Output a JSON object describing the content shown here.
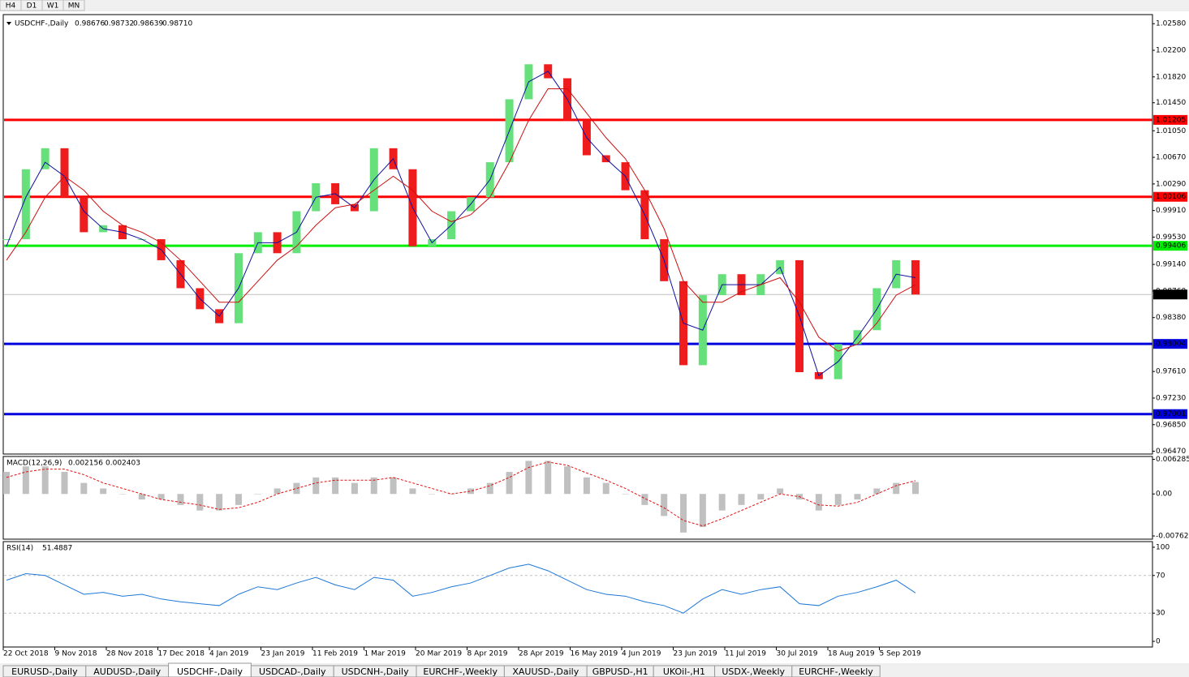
{
  "toolbar": {
    "timeframes": [
      "H4",
      "D1",
      "W1",
      "MN"
    ]
  },
  "chart_data": {
    "type": "candlestick",
    "title": "USDCHF-,Daily",
    "ohlc": [
      0.98676,
      0.98732,
      0.98639,
      {
        "value": 0.9871,
        "label": "0.98710"
      }
    ],
    "x_labels": [
      "22 Oct 2018",
      "9 Nov 2018",
      "28 Nov 2018",
      "17 Dec 2018",
      "4 Jan 2019",
      "23 Jan 2019",
      "11 Feb 2019",
      "1 Mar 2019",
      "20 Mar 2019",
      "8 Apr 2019",
      "28 Apr 2019",
      "16 May 2019",
      "4 Jun 2019",
      "23 Jun 2019",
      "11 Jul 2019",
      "30 Jul 2019",
      "18 Aug 2019",
      "5 Sep 2019"
    ],
    "ylim": [
      0.9643,
      1.0271
    ],
    "yticks": [
      {
        "value": 1.0258,
        "label": "1.02580"
      },
      {
        "value": 1.022,
        "label": "1.02200"
      },
      {
        "value": 1.0182,
        "label": "1.01820"
      },
      {
        "value": 1.0145,
        "label": "1.01450"
      },
      {
        "value": 1.0105,
        "label": "1.01050"
      },
      {
        "value": 1.0067,
        "label": "1.00670"
      },
      {
        "value": 1.0029,
        "label": "1.00290"
      },
      {
        "value": 0.9991,
        "label": "0.99910"
      },
      {
        "value": 0.9953,
        "label": "0.99530"
      },
      {
        "value": 0.9914,
        "label": "0.99140"
      },
      {
        "value": 0.9876,
        "label": "0.98760"
      },
      {
        "value": 0.9838,
        "label": "0.98380"
      },
      {
        "value": 0.9761,
        "label": "0.97610"
      },
      {
        "value": 0.9723,
        "label": "0.97230"
      },
      {
        "value": 0.9685,
        "label": "0.96850"
      },
      {
        "value": 0.9647,
        "label": "0.96470"
      }
    ],
    "close": [
      0.995,
      1.005,
      1.008,
      1.001,
      0.996,
      0.997,
      0.995,
      0.995,
      0.992,
      0.988,
      0.985,
      0.983,
      0.993,
      0.996,
      0.993,
      0.999,
      1.003,
      1.0,
      0.999,
      1.008,
      1.005,
      0.994,
      0.995,
      0.999,
      1.001,
      1.006,
      1.015,
      1.02,
      1.018,
      1.012,
      1.007,
      1.006,
      1.002,
      0.995,
      0.989,
      0.977,
      0.987,
      0.99,
      0.987,
      0.99,
      0.992,
      0.976,
      0.975,
      0.98,
      0.982,
      0.988,
      0.992,
      0.9871
    ],
    "up_color": "#66e07a",
    "down_color": "#ee1c1c",
    "series": [
      {
        "color": "#1010a0",
        "values": [
          0.994,
          1.001,
          1.006,
          1.004,
          0.999,
          0.9965,
          0.996,
          0.995,
          0.9935,
          0.99,
          0.9865,
          0.984,
          0.988,
          0.9945,
          0.9945,
          0.996,
          1.001,
          1.0015,
          0.9995,
          1.0035,
          1.0065,
          0.9995,
          0.9945,
          0.997,
          1.0,
          1.0035,
          1.0105,
          1.0175,
          1.019,
          1.015,
          1.0095,
          1.0065,
          1.004,
          0.9985,
          0.992,
          0.983,
          0.982,
          0.9885,
          0.9885,
          0.9885,
          0.991,
          0.984,
          0.9755,
          0.9775,
          0.981,
          0.985,
          0.99,
          0.9895
        ]
      },
      {
        "color": "#cc1010",
        "values": [
          0.992,
          0.996,
          1.001,
          1.004,
          1.002,
          0.999,
          0.997,
          0.996,
          0.9945,
          0.992,
          0.989,
          0.986,
          0.986,
          0.989,
          0.992,
          0.994,
          0.997,
          0.9995,
          1.0,
          1.002,
          1.004,
          1.002,
          0.999,
          0.9975,
          0.9985,
          1.001,
          1.006,
          1.012,
          1.0165,
          1.0165,
          1.013,
          1.0095,
          1.0065,
          1.002,
          0.9965,
          0.989,
          0.986,
          0.986,
          0.9875,
          0.9885,
          0.9895,
          0.986,
          0.981,
          0.979,
          0.98,
          0.983,
          0.987,
          0.9885
        ]
      }
    ],
    "levels": [
      {
        "value": 1.01205,
        "label": "1.01205",
        "color": "#ff0000"
      },
      {
        "value": 1.00106,
        "label": "1.00106",
        "color": "#ff0000"
      },
      {
        "value": 0.99406,
        "label": "0.99406",
        "color": "#00ee00"
      },
      {
        "value": 0.98004,
        "label": "0.98004",
        "color": "#0000dd"
      },
      {
        "value": 0.97001,
        "label": "0.97001",
        "color": "#0000dd"
      }
    ],
    "macd": {
      "title": "MACD(12,26,9)",
      "readout": [
        0.002156,
        0.002403
      ],
      "ylim": [
        -0.0082,
        0.0068
      ],
      "yticks": [
        0.006285,
        {
          "value": 0,
          "label": "0.00"
        },
        -0.00762
      ],
      "histogram": [
        0.004,
        0.005,
        0.005,
        0.004,
        0.002,
        0.001,
        0.0,
        -0.001,
        -0.001,
        -0.002,
        -0.003,
        -0.003,
        -0.002,
        0.0,
        0.001,
        0.002,
        0.003,
        0.003,
        0.002,
        0.003,
        0.003,
        0.001,
        0.0,
        0.0,
        0.001,
        0.002,
        0.004,
        0.006,
        0.006,
        0.005,
        0.003,
        0.002,
        0.0,
        -0.002,
        -0.004,
        -0.007,
        -0.006,
        -0.003,
        -0.002,
        -0.001,
        0.001,
        -0.001,
        -0.003,
        -0.002,
        -0.001,
        0.001,
        0.002,
        0.002156
      ],
      "signal": [
        0.003,
        0.004,
        0.0045,
        0.0045,
        0.0035,
        0.002,
        0.001,
        0.0,
        -0.001,
        -0.0015,
        -0.002,
        -0.0028,
        -0.0025,
        -0.0015,
        0.0,
        0.001,
        0.002,
        0.0025,
        0.0025,
        0.0025,
        0.003,
        0.002,
        0.001,
        0.0,
        0.0005,
        0.0015,
        0.003,
        0.0048,
        0.0058,
        0.0052,
        0.0038,
        0.0025,
        0.001,
        -0.0008,
        -0.0025,
        -0.0048,
        -0.0058,
        -0.0045,
        -0.003,
        -0.0015,
        0.0,
        -0.0005,
        -0.002,
        -0.0022,
        -0.0015,
        0.0,
        0.0015,
        0.002403
      ]
    },
    "rsi": {
      "title": "RSI(14)",
      "readout": 51.4887,
      "ylim": [
        -6,
        106
      ],
      "yticks": [
        100,
        70,
        30,
        0
      ],
      "values": [
        65,
        72,
        70,
        60,
        50,
        52,
        48,
        50,
        45,
        42,
        40,
        38,
        50,
        58,
        55,
        62,
        68,
        60,
        55,
        68,
        65,
        48,
        52,
        58,
        62,
        70,
        78,
        82,
        75,
        65,
        55,
        50,
        48,
        42,
        38,
        30,
        45,
        55,
        50,
        55,
        58,
        40,
        38,
        48,
        52,
        58,
        65,
        51.4887
      ]
    }
  },
  "tabs": [
    "EURUSD-,Daily",
    "AUDUSD-,Daily",
    "USDCHF-,Daily",
    "USDCAD-,Daily",
    "USDCNH-,Daily",
    "EURCHF-,Weekly",
    "XAUUSD-,Daily",
    "GBPUSD-,H1",
    "UKOil-,H1",
    "USDX-,Weekly",
    "EURCHF-,Weekly"
  ],
  "active_tab": 2
}
